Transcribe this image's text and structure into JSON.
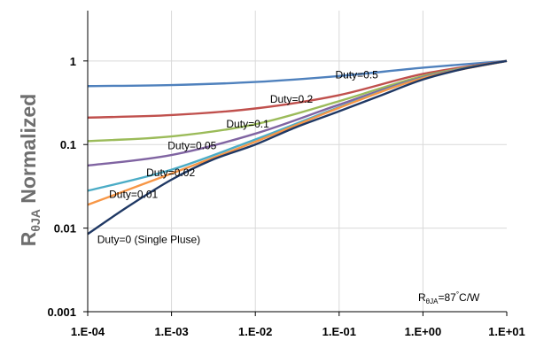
{
  "chart_data": {
    "type": "line",
    "x_scale": "log",
    "y_scale": "log",
    "xlim": [
      0.0001,
      10
    ],
    "ylim": [
      0.001,
      4
    ],
    "grid": true,
    "legend": "none",
    "x_ticks": [
      {
        "value": 0.0001,
        "label": "1.E-04"
      },
      {
        "value": 0.001,
        "label": "1.E-03"
      },
      {
        "value": 0.01,
        "label": "1.E-02"
      },
      {
        "value": 0.1,
        "label": "1.E-01"
      },
      {
        "value": 1,
        "label": "1.E+00"
      },
      {
        "value": 10,
        "label": "1.E+01"
      }
    ],
    "y_ticks": [
      {
        "value": 0.001,
        "label": "0.001"
      },
      {
        "value": 0.01,
        "label": "0.01"
      },
      {
        "value": 0.1,
        "label": "0.1"
      },
      {
        "value": 1,
        "label": "1"
      }
    ],
    "ylabel": {
      "main": "R",
      "sub": "θJA",
      "rest": " Normalized"
    },
    "annotation": {
      "main": "R",
      "sub": "θJA",
      "rest": "=87",
      "sup": "°",
      "tail": "C/W"
    },
    "series": [
      {
        "label": "Duty=0.5",
        "color": "#4f81bd",
        "label_at": [
          0.09,
          0.62
        ],
        "points": [
          [
            0.0001,
            0.5
          ],
          [
            0.001,
            0.515
          ],
          [
            0.01,
            0.56
          ],
          [
            0.1,
            0.66
          ],
          [
            1,
            0.83
          ],
          [
            10,
            1.0
          ]
        ]
      },
      {
        "label": "Duty=0.2",
        "color": "#c0504d",
        "label_at": [
          0.015,
          0.315
        ],
        "points": [
          [
            0.0001,
            0.21
          ],
          [
            0.001,
            0.225
          ],
          [
            0.01,
            0.27
          ],
          [
            0.1,
            0.39
          ],
          [
            1,
            0.7
          ],
          [
            10,
            1.0
          ]
        ]
      },
      {
        "label": "Duty=0.1",
        "color": "#9bbb59",
        "label_at": [
          0.0045,
          0.16
        ],
        "points": [
          [
            0.0001,
            0.11
          ],
          [
            0.001,
            0.125
          ],
          [
            0.01,
            0.175
          ],
          [
            0.1,
            0.33
          ],
          [
            1,
            0.66
          ],
          [
            10,
            1.0
          ]
        ]
      },
      {
        "label": "Duty=0.05",
        "color": "#8064a2",
        "label_at": [
          0.0009,
          0.088
        ],
        "points": [
          [
            0.0001,
            0.056
          ],
          [
            0.001,
            0.075
          ],
          [
            0.01,
            0.135
          ],
          [
            0.1,
            0.3
          ],
          [
            1,
            0.64
          ],
          [
            10,
            1.0
          ]
        ]
      },
      {
        "label": "Duty=0.02",
        "color": "#4bacc6",
        "label_at": [
          0.0005,
          0.042
        ],
        "points": [
          [
            0.0001,
            0.028
          ],
          [
            0.001,
            0.05
          ],
          [
            0.01,
            0.115
          ],
          [
            0.1,
            0.28
          ],
          [
            1,
            0.63
          ],
          [
            10,
            1.0
          ]
        ]
      },
      {
        "label": "Duty=0.01",
        "color": "#f79646",
        "label_at": [
          0.00018,
          0.023
        ],
        "points": [
          [
            0.0001,
            0.019
          ],
          [
            0.001,
            0.045
          ],
          [
            0.01,
            0.108
          ],
          [
            0.1,
            0.275
          ],
          [
            1,
            0.625
          ],
          [
            10,
            1.0
          ]
        ]
      },
      {
        "label": "Duty=0 (Single Pluse)",
        "color": "#1f3864",
        "label_at": [
          0.00013,
          0.0066
        ],
        "points": [
          [
            0.0001,
            0.0085
          ],
          [
            0.0003,
            0.018
          ],
          [
            0.001,
            0.038
          ],
          [
            0.003,
            0.065
          ],
          [
            0.01,
            0.1
          ],
          [
            0.03,
            0.16
          ],
          [
            0.1,
            0.25
          ],
          [
            0.3,
            0.38
          ],
          [
            1,
            0.6
          ],
          [
            3,
            0.8
          ],
          [
            10,
            1.0
          ]
        ]
      }
    ]
  }
}
